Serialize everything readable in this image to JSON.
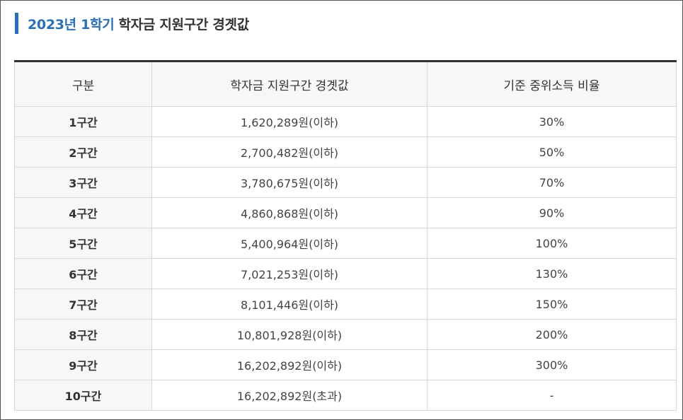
{
  "title": {
    "accent": "2023년 1학기",
    "text": "학자금 지원구간 경곗값"
  },
  "colors": {
    "accent": "#2b6fb6",
    "header_bg": "#f7f7f7",
    "border": "#d9d9d9"
  },
  "table": {
    "headers": [
      "구분",
      "학자금 지원구간 경곗값",
      "기준 중위소득 비율"
    ],
    "rows": [
      {
        "segment": "1구간",
        "threshold": "1,620,289원(이하)",
        "ratio": "30%"
      },
      {
        "segment": "2구간",
        "threshold": "2,700,482원(이하)",
        "ratio": "50%"
      },
      {
        "segment": "3구간",
        "threshold": "3,780,675원(이하)",
        "ratio": "70%"
      },
      {
        "segment": "4구간",
        "threshold": "4,860,868원(이하)",
        "ratio": "90%"
      },
      {
        "segment": "5구간",
        "threshold": "5,400,964원(이하)",
        "ratio": "100%"
      },
      {
        "segment": "6구간",
        "threshold": "7,021,253원(이하)",
        "ratio": "130%"
      },
      {
        "segment": "7구간",
        "threshold": "8,101,446원(이하)",
        "ratio": "150%"
      },
      {
        "segment": "8구간",
        "threshold": "10,801,928원(이하)",
        "ratio": "200%"
      },
      {
        "segment": "9구간",
        "threshold": "16,202,892원(이하)",
        "ratio": "300%"
      },
      {
        "segment": "10구간",
        "threshold": "16,202,892원(초과)",
        "ratio": "-"
      }
    ]
  }
}
